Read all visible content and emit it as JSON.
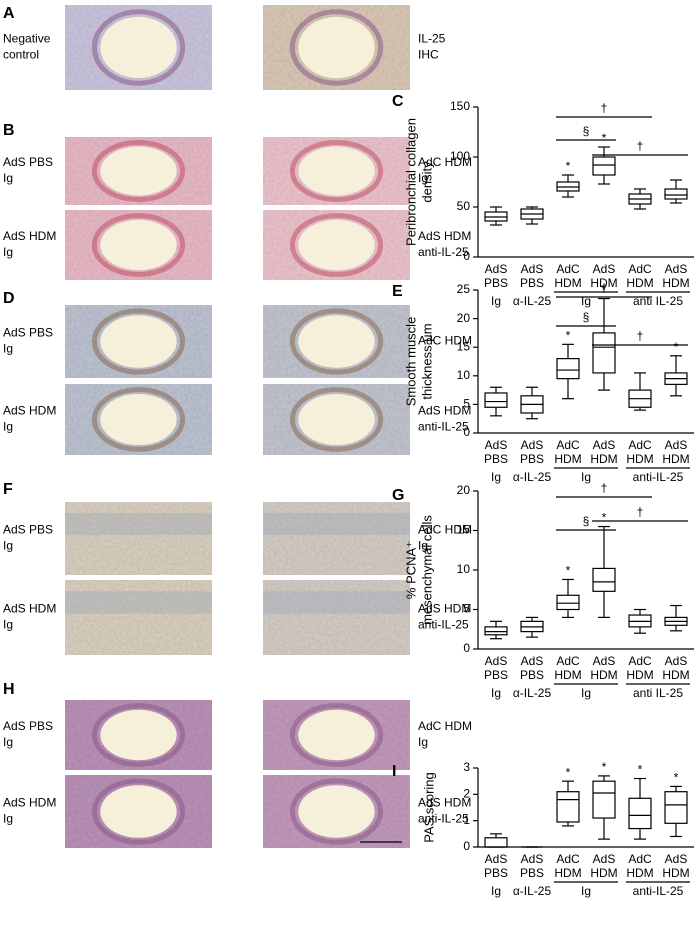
{
  "image_panels": [
    {
      "letter": "A",
      "images": [
        {
          "label": [
            "Negative",
            "control"
          ]
        },
        {
          "label": [
            "IL-25",
            "IHC"
          ]
        }
      ]
    },
    {
      "letter": "B",
      "images": [
        {
          "label": [
            "AdS PBS",
            "Ig"
          ]
        },
        {
          "label": [
            "AdC HDM",
            "Ig"
          ]
        },
        {
          "label": [
            "AdS HDM",
            "Ig"
          ]
        },
        {
          "label": [
            "AdS HDM",
            "anti-IL-25"
          ]
        }
      ]
    },
    {
      "letter": "D",
      "images": [
        {
          "label": [
            "AdS PBS",
            "Ig"
          ]
        },
        {
          "label": [
            "AdC HDM"
          ]
        },
        {
          "label": [
            "AdS HDM",
            "Ig"
          ]
        },
        {
          "label": [
            "AdS HDM",
            "anti-IL-25"
          ]
        }
      ]
    },
    {
      "letter": "F",
      "images": [
        {
          "label": [
            "AdS PBS",
            "Ig"
          ]
        },
        {
          "label": [
            "AdC HDM",
            "Ig"
          ]
        },
        {
          "label": [
            "AdS HDM",
            "Ig"
          ]
        },
        {
          "label": [
            "AdS HDM",
            "anti-IL-25"
          ]
        }
      ]
    },
    {
      "letter": "H",
      "images": [
        {
          "label": [
            "AdS PBS",
            "Ig"
          ]
        },
        {
          "label": [
            "AdC HDM",
            "Ig"
          ]
        },
        {
          "label": [
            "AdS HDM",
            "Ig"
          ]
        },
        {
          "label": [
            "AdS HDM",
            "anti-IL-25"
          ]
        }
      ]
    }
  ],
  "chart_data": [
    {
      "type": "box",
      "letter": "C",
      "ylabel": [
        "Peribronchial collagen",
        "density"
      ],
      "categories": [
        [
          "AdS",
          "PBS"
        ],
        [
          "AdS",
          "PBS"
        ],
        [
          "AdC",
          "HDM"
        ],
        [
          "AdS",
          "HDM"
        ],
        [
          "AdC",
          "HDM"
        ],
        [
          "AdS",
          "HDM"
        ]
      ],
      "groups": [
        "Ig",
        "α-IL-25",
        "Ig",
        "anti IL-25"
      ],
      "values": [
        [
          32,
          36,
          40,
          45,
          50
        ],
        [
          33,
          38,
          43,
          48,
          50
        ],
        [
          60,
          66,
          70,
          75,
          82
        ],
        [
          73,
          82,
          92,
          100,
          110
        ],
        [
          48,
          53,
          58,
          63,
          68
        ],
        [
          54,
          58,
          62,
          68,
          77
        ]
      ],
      "stars": [
        null,
        null,
        "*",
        "*",
        null,
        null
      ],
      "brackets": [
        {
          "label": "§",
          "from": 2,
          "to": 3
        },
        {
          "label": "†",
          "from": 2,
          "to": 4
        },
        {
          "label": "†",
          "from": 3,
          "to": 5
        }
      ],
      "ylim": [
        0,
        150
      ],
      "yticks": [
        0,
        50,
        100,
        150
      ]
    },
    {
      "type": "box",
      "letter": "E",
      "ylabel": [
        "Smooth muscle",
        "thickness µm"
      ],
      "categories": [
        [
          "AdS",
          "PBS"
        ],
        [
          "AdS",
          "PBS"
        ],
        [
          "AdC",
          "HDM"
        ],
        [
          "AdS",
          "HDM"
        ],
        [
          "AdC",
          "HDM"
        ],
        [
          "AdS",
          "HDM"
        ]
      ],
      "groups": [
        "Ig",
        "α-IL-25",
        "Ig",
        "anti-IL-25"
      ],
      "values": [
        [
          3,
          4.5,
          5.5,
          7,
          8
        ],
        [
          2.5,
          3.5,
          5,
          6.5,
          8
        ],
        [
          6,
          9.5,
          11,
          13,
          15.5
        ],
        [
          7.5,
          10.5,
          15,
          17.5,
          23.5
        ],
        [
          4,
          4.5,
          6,
          7.5,
          10.5
        ],
        [
          6.5,
          8.5,
          9.5,
          10.5,
          13.5
        ]
      ],
      "stars": [
        null,
        null,
        "*",
        "*",
        null,
        "*"
      ],
      "brackets": [
        {
          "label": "§",
          "from": 2,
          "to": 3
        },
        {
          "label": "†",
          "from": 2,
          "to": 4
        },
        {
          "label": "†",
          "from": 3,
          "to": 5
        }
      ],
      "ylim": [
        0,
        25
      ],
      "yticks": [
        0,
        5,
        10,
        15,
        20,
        25
      ]
    },
    {
      "type": "box",
      "letter": "G",
      "ylabel": [
        "% PCNA⁺",
        "mesenchymal cells"
      ],
      "categories": [
        [
          "AdS",
          "PBS"
        ],
        [
          "AdS",
          "PBS"
        ],
        [
          "AdC",
          "HDM"
        ],
        [
          "AdS",
          "HDM"
        ],
        [
          "AdC",
          "HDM"
        ],
        [
          "AdS",
          "HDM"
        ]
      ],
      "groups": [
        "Ig",
        "α-IL-25",
        "Ig",
        "anti IL-25"
      ],
      "values": [
        [
          1.3,
          1.8,
          2.2,
          2.8,
          3.5
        ],
        [
          1.5,
          2.2,
          2.8,
          3.5,
          4
        ],
        [
          4,
          5,
          5.8,
          6.8,
          8.8
        ],
        [
          4,
          7.3,
          8.5,
          10.2,
          15.5
        ],
        [
          2,
          2.8,
          3.5,
          4.3,
          5
        ],
        [
          2.3,
          3,
          3.5,
          4,
          5.5
        ]
      ],
      "stars": [
        null,
        null,
        "*",
        "*",
        null,
        null
      ],
      "brackets": [
        {
          "label": "§",
          "from": 2,
          "to": 3
        },
        {
          "label": "†",
          "from": 2,
          "to": 4
        },
        {
          "label": "†",
          "from": 3,
          "to": 5
        }
      ],
      "ylim": [
        0,
        20
      ],
      "yticks": [
        0,
        5,
        10,
        15,
        20
      ]
    },
    {
      "type": "box",
      "letter": "I",
      "ylabel": [
        "PAS scoring"
      ],
      "categories": [
        [
          "AdS",
          "PBS"
        ],
        [
          "AdS",
          "PBS"
        ],
        [
          "AdC",
          "HDM"
        ],
        [
          "AdS",
          "HDM"
        ],
        [
          "AdC",
          "HDM"
        ],
        [
          "AdS",
          "HDM"
        ]
      ],
      "groups": [
        "Ig",
        "α-IL-25",
        "Ig",
        "anti-IL-25"
      ],
      "values": [
        [
          0,
          0,
          0,
          0.35,
          0.5
        ],
        [
          0,
          0,
          0,
          0,
          0
        ],
        [
          0.8,
          0.95,
          1.8,
          2.1,
          2.5
        ],
        [
          0.3,
          1.1,
          2.05,
          2.5,
          2.7
        ],
        [
          0.3,
          0.7,
          1.2,
          1.85,
          2.6
        ],
        [
          0.4,
          0.9,
          1.6,
          2.1,
          2.3
        ]
      ],
      "stars": [
        null,
        null,
        "*",
        "*",
        "*",
        "*"
      ],
      "brackets": [],
      "ylim": [
        0,
        3
      ],
      "yticks": [
        0,
        1,
        2,
        3
      ]
    }
  ]
}
